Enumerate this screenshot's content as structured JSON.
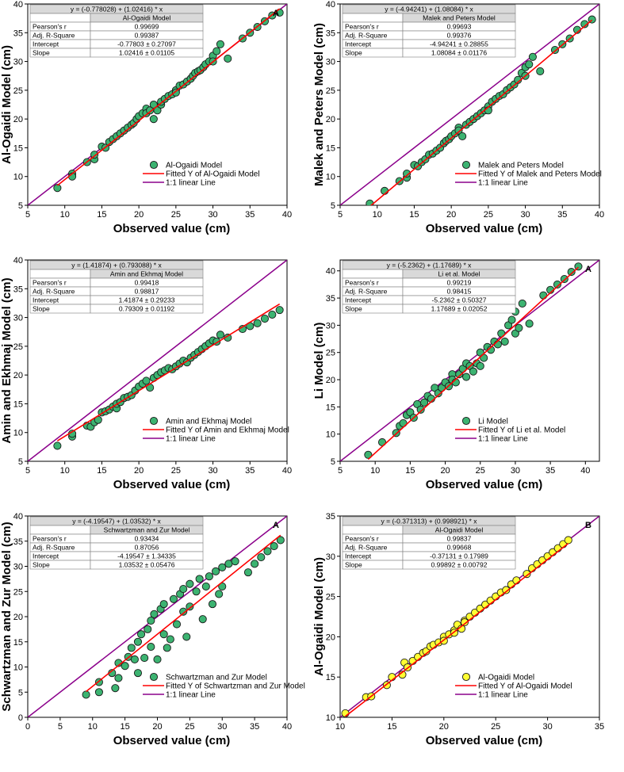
{
  "chart_data": [
    {
      "type": "scatter",
      "panel_letter": "A",
      "xlabel": "Observed value (cm)",
      "ylabel": "Al-Ogaidi Model (cm)",
      "xlim": [
        5,
        40
      ],
      "ylim": [
        5,
        40
      ],
      "xticks": [
        5,
        10,
        15,
        20,
        25,
        30,
        35,
        40
      ],
      "yticks": [
        5,
        10,
        15,
        20,
        25,
        30,
        35,
        40
      ],
      "equation": "y = (-0.778028) + (1.02416) * x",
      "model_name": "Al-Ogaidi Model",
      "stats": [
        {
          "label": "Pearson's r",
          "value": "0.99699"
        },
        {
          "label": "Adj. R-Square",
          "value": "0.99387"
        },
        {
          "label": "Intercept",
          "value": "-0.77803 ± 0.27097"
        },
        {
          "label": "Slope",
          "value": "1.02416 ± 0.01105"
        }
      ],
      "fit": {
        "intercept": -0.778028,
        "slope": 1.02416
      },
      "point_color": "#3cb371",
      "legend": [
        "Al-Ogaidi Model",
        "Fitted Y of Al-Ogaidi Model",
        "1:1 linear Line"
      ],
      "x": [
        9,
        11,
        11,
        13,
        14,
        14,
        15,
        15.5,
        16,
        16.5,
        17,
        17.5,
        18,
        18.5,
        19,
        19.3,
        19.7,
        20,
        20.5,
        21,
        21,
        21.5,
        22,
        22,
        22.5,
        23,
        23,
        23.5,
        24,
        24.5,
        25,
        25,
        25.5,
        26,
        26.5,
        27,
        27.3,
        27.6,
        28,
        28.3,
        28.7,
        29,
        29.5,
        30,
        30,
        30.5,
        31,
        32,
        34,
        35,
        36,
        37,
        38,
        39
      ],
      "y": [
        8,
        10.5,
        10,
        12.5,
        13,
        13.8,
        15.2,
        15,
        16,
        16.5,
        17,
        17.5,
        18,
        18.5,
        19,
        19.3,
        20,
        20.5,
        21,
        21.8,
        21,
        21.5,
        22.5,
        20,
        21.5,
        22.5,
        23,
        23.5,
        24,
        24.3,
        25,
        24.6,
        25.8,
        26,
        26.5,
        27,
        27.5,
        28,
        28.3,
        28.5,
        29,
        29.5,
        30,
        31,
        30,
        31.8,
        33,
        30.5,
        34,
        35,
        36,
        37,
        38,
        38.5
      ]
    },
    {
      "type": "scatter",
      "panel_letter": "",
      "xlabel": "Observed value (cm)",
      "ylabel": "Malek and Peters Model (cm)",
      "xlim": [
        5,
        40
      ],
      "ylim": [
        5,
        40
      ],
      "xticks": [
        5,
        10,
        15,
        20,
        25,
        30,
        35,
        40
      ],
      "yticks": [
        5,
        10,
        15,
        20,
        25,
        30,
        35,
        40
      ],
      "equation": "y = (-4.94241) + (1.08084) * x",
      "model_name": "Malek and Peters Model",
      "stats": [
        {
          "label": "Pearson's r",
          "value": "0.99693"
        },
        {
          "label": "Adj. R-Square",
          "value": "0.99376"
        },
        {
          "label": "Intercept",
          "value": "-4.94241 ± 0.28855"
        },
        {
          "label": "Slope",
          "value": "1.08084 ± 0.01176"
        }
      ],
      "fit": {
        "intercept": -4.94241,
        "slope": 1.08084
      },
      "point_color": "#3cb371",
      "legend": [
        "Malek and Peters Model",
        "Fitted Y of Malek and Peters Model",
        "1:1 linear Line"
      ],
      "x": [
        9,
        11,
        13,
        14,
        14,
        15,
        15.5,
        16,
        16.5,
        17,
        17.5,
        18,
        18.5,
        19,
        19.3,
        19.7,
        20,
        20.5,
        21,
        21,
        21.5,
        22,
        22.5,
        23,
        23.5,
        24,
        24.5,
        25,
        25,
        25.5,
        26,
        26.5,
        27,
        27.5,
        28,
        28.5,
        29,
        29.5,
        30,
        30,
        30.5,
        31,
        32,
        34,
        35,
        36,
        37,
        38,
        39
      ],
      "y": [
        5.3,
        7.5,
        9.2,
        9.8,
        10.5,
        12,
        11.8,
        12.5,
        13,
        13.8,
        14,
        14.5,
        15,
        15.8,
        16.2,
        16.5,
        17,
        17.5,
        18.5,
        18,
        17,
        19,
        19.5,
        20,
        20.5,
        21,
        21.5,
        22.2,
        21.5,
        23,
        23.5,
        24,
        24.3,
        25,
        25.5,
        26,
        26.8,
        28,
        29,
        27.5,
        29.5,
        30.8,
        28.3,
        32,
        33,
        34,
        35.5,
        36.5,
        37.3
      ]
    },
    {
      "type": "scatter",
      "panel_letter": "",
      "xlabel": "Observed value (cm)",
      "ylabel": "Amin and Ekhmaj Model (cm)",
      "xlim": [
        5,
        40
      ],
      "ylim": [
        5,
        40
      ],
      "xticks": [
        5,
        10,
        15,
        20,
        25,
        30,
        35,
        40
      ],
      "yticks": [
        5,
        10,
        15,
        20,
        25,
        30,
        35,
        40
      ],
      "equation": "y = (1.41874) + (0.793088) * x",
      "model_name": "Amin and Ekhmaj Model",
      "stats": [
        {
          "label": "Pearson's r",
          "value": "0.99418"
        },
        {
          "label": "Adj. R-Square",
          "value": "0.98817"
        },
        {
          "label": "Intercept",
          "value": "1.41874 ± 0.29233"
        },
        {
          "label": "Slope",
          "value": "0.79309 ± 0.01192"
        }
      ],
      "fit": {
        "intercept": 1.41874,
        "slope": 0.793088
      },
      "point_color": "#3cb371",
      "legend": [
        "Amin and Ekhmaj Model",
        "Fitted Y of Amin and Ekhmaj Model",
        "1:1 linear Line"
      ],
      "x": [
        9,
        11,
        11,
        13,
        13.5,
        14,
        14.5,
        15,
        15.5,
        16,
        16.5,
        17,
        17,
        17.5,
        18,
        18.5,
        19,
        19.5,
        20,
        20.5,
        21,
        21.5,
        22,
        22.5,
        23,
        23.5,
        24,
        24.5,
        25,
        25.5,
        26,
        26.5,
        27,
        27.5,
        28,
        28.5,
        29,
        29.5,
        30,
        30.5,
        31,
        32,
        34,
        35,
        36,
        37,
        38,
        39
      ],
      "y": [
        7.7,
        9.3,
        9.8,
        11.2,
        11,
        11.8,
        12.2,
        13.5,
        13.7,
        14,
        14.5,
        14.2,
        15,
        15.3,
        16,
        16.2,
        16.5,
        17.3,
        18,
        18.5,
        19,
        17.8,
        19.5,
        20,
        20.5,
        20.8,
        21.2,
        21,
        21.5,
        22,
        22.5,
        22.2,
        23,
        23.5,
        24,
        24.5,
        25,
        25.5,
        26,
        25.8,
        27,
        26.5,
        28,
        28.5,
        29,
        29.8,
        30.5,
        31.3
      ]
    },
    {
      "type": "scatter",
      "panel_letter": "A",
      "xlabel": "Observed value (cm)",
      "ylabel": "Li Model (cm)",
      "xlim": [
        5,
        42
      ],
      "ylim": [
        5,
        42
      ],
      "xticks": [
        5,
        10,
        15,
        20,
        25,
        30,
        35,
        40
      ],
      "yticks": [
        5,
        10,
        15,
        20,
        25,
        30,
        35,
        40
      ],
      "equation": "y = (-5.2362) + (1.17689) * x",
      "model_name": "Li et al. Model",
      "stats": [
        {
          "label": "Pearson's r",
          "value": "0.99219"
        },
        {
          "label": "Adj. R-Square",
          "value": "0.98415"
        },
        {
          "label": "Intercept",
          "value": "-5.2362 ± 0.50327"
        },
        {
          "label": "Slope",
          "value": "1.17689 ± 0.02052"
        }
      ],
      "fit": {
        "intercept": -5.2362,
        "slope": 1.17689
      },
      "point_color": "#3cb371",
      "legend": [
        "Li Model",
        "Fitted Y of Li et al. Model",
        "1:1 linear Line"
      ],
      "x": [
        9,
        11,
        13,
        13.5,
        14,
        14.5,
        15,
        15.5,
        16,
        16.5,
        17,
        17.5,
        18,
        18.5,
        19,
        19.5,
        20,
        20.5,
        21,
        21,
        21.5,
        22,
        22.5,
        23,
        23,
        23.5,
        24,
        24.5,
        25,
        25,
        25.5,
        26,
        26.5,
        27,
        27.5,
        28,
        28.5,
        29,
        29.5,
        30,
        30,
        30.5,
        31,
        32,
        34,
        35,
        36,
        37,
        38,
        39
      ],
      "y": [
        6.2,
        8.5,
        10.2,
        11.5,
        12,
        13.5,
        14,
        13,
        15.5,
        14.5,
        15.8,
        17,
        16.5,
        18.5,
        17.5,
        18.5,
        19.5,
        18.8,
        21,
        20,
        19.5,
        21,
        22,
        23,
        20.5,
        22.5,
        21.5,
        23,
        25,
        22.5,
        24,
        26,
        25.5,
        27,
        26.5,
        28.5,
        27,
        30,
        31,
        28.5,
        32.5,
        29.5,
        34,
        30.3,
        35.5,
        36.5,
        37.5,
        38.5,
        39.8,
        40.8
      ]
    },
    {
      "type": "scatter",
      "panel_letter": "A",
      "xlabel": "Observed value (cm)",
      "ylabel": "Schwartzman and Zur Model (cm)",
      "xlim": [
        0,
        40
      ],
      "ylim": [
        0,
        40
      ],
      "xticks": [
        0,
        5,
        10,
        15,
        20,
        25,
        30,
        35,
        40
      ],
      "yticks": [
        0,
        5,
        10,
        15,
        20,
        25,
        30,
        35,
        40
      ],
      "equation": "y = (-4.19547) + (1.03532) * x",
      "model_name": "Schwartzman and Zur Model",
      "stats": [
        {
          "label": "Pearson's r",
          "value": "0.93434"
        },
        {
          "label": "Adj. R-Square",
          "value": "0.87056"
        },
        {
          "label": "Intercept",
          "value": "-4.19547 ± 1.34335"
        },
        {
          "label": "Slope",
          "value": "1.03532 ± 0.05476"
        }
      ],
      "fit": {
        "intercept": -4.19547,
        "slope": 1.03532
      },
      "point_color": "#3cb371",
      "legend": [
        "Schwartzman and Zur Model",
        "Fitted Y of Schwartzman and Zur Model",
        "1:1 linear Line"
      ],
      "x": [
        9,
        11,
        11,
        13,
        13.5,
        14,
        14,
        15,
        15.5,
        16,
        16.5,
        17,
        17,
        17.5,
        18,
        18.5,
        19,
        19,
        19.5,
        20,
        20.5,
        21,
        21,
        21.5,
        22,
        22.5,
        23,
        23.5,
        24,
        24,
        24.5,
        25,
        25,
        26,
        26.5,
        27,
        27.5,
        28,
        28.5,
        29,
        29.5,
        30,
        30,
        31,
        32,
        34,
        35,
        36,
        37,
        38,
        39
      ],
      "y": [
        4.5,
        5,
        7,
        8.8,
        5.8,
        7.8,
        10.8,
        10.2,
        12,
        13.8,
        11.5,
        15,
        8.8,
        16.5,
        11.8,
        17.5,
        14,
        19.2,
        20.5,
        11.5,
        21.5,
        16.5,
        22.5,
        13.8,
        15.5,
        23.5,
        18.5,
        24.5,
        21,
        25.5,
        16,
        26.5,
        22,
        25,
        27.5,
        19.5,
        26,
        28,
        22.5,
        29,
        24.5,
        26,
        29.8,
        30.5,
        31,
        28.8,
        30.5,
        31.8,
        33,
        34,
        35.2
      ]
    },
    {
      "type": "scatter",
      "panel_letter": "B",
      "xlabel": "Observed value (cm)",
      "ylabel": "Al-Ogaidi Model (cm)",
      "xlim": [
        10,
        35
      ],
      "ylim": [
        10,
        35
      ],
      "xticks": [
        10,
        15,
        20,
        25,
        30,
        35
      ],
      "yticks": [
        10,
        15,
        20,
        25,
        30,
        35
      ],
      "equation": "y = (-0.371313) + (0.998921) * x",
      "model_name": "Al-Ogaidi Model",
      "stats": [
        {
          "label": "Pearson's r",
          "value": "0.99837"
        },
        {
          "label": "Adj. R-Square",
          "value": "0.99668"
        },
        {
          "label": "Intercept",
          "value": "-0.37131 ± 0.17989"
        },
        {
          "label": "Slope",
          "value": "0.99892 ± 0.00792"
        }
      ],
      "fit": {
        "intercept": -0.371313,
        "slope": 0.998921
      },
      "point_color": "#ffff33",
      "legend": [
        "Al-Ogaidi Model",
        "Fitted Y of Al-Ogaidi Model",
        "1:1 linear Line"
      ],
      "x": [
        10.5,
        12.5,
        13,
        14.5,
        15,
        16,
        16.2,
        16.5,
        17,
        17.5,
        18,
        18.3,
        18.7,
        19,
        19.5,
        20,
        20,
        20.5,
        21,
        21,
        21.3,
        21.7,
        22,
        22,
        22.5,
        23,
        23.5,
        24,
        24.5,
        25,
        25.5,
        26,
        26.5,
        27,
        28,
        28.5,
        29,
        29.5,
        30,
        30.5,
        31,
        31.5,
        32
      ],
      "y": [
        10.5,
        12.5,
        12.6,
        14,
        15,
        15.3,
        16.8,
        16.2,
        17,
        17.5,
        18,
        18.2,
        18.8,
        19,
        19.3,
        20,
        19.5,
        20.3,
        20.8,
        20.5,
        21.5,
        21,
        22,
        21.8,
        22.5,
        23,
        23.5,
        24,
        24.5,
        25,
        25.5,
        25.8,
        26.5,
        27,
        27.8,
        28.5,
        29,
        29.5,
        30,
        30.5,
        31,
        31.5,
        32
      ]
    }
  ]
}
